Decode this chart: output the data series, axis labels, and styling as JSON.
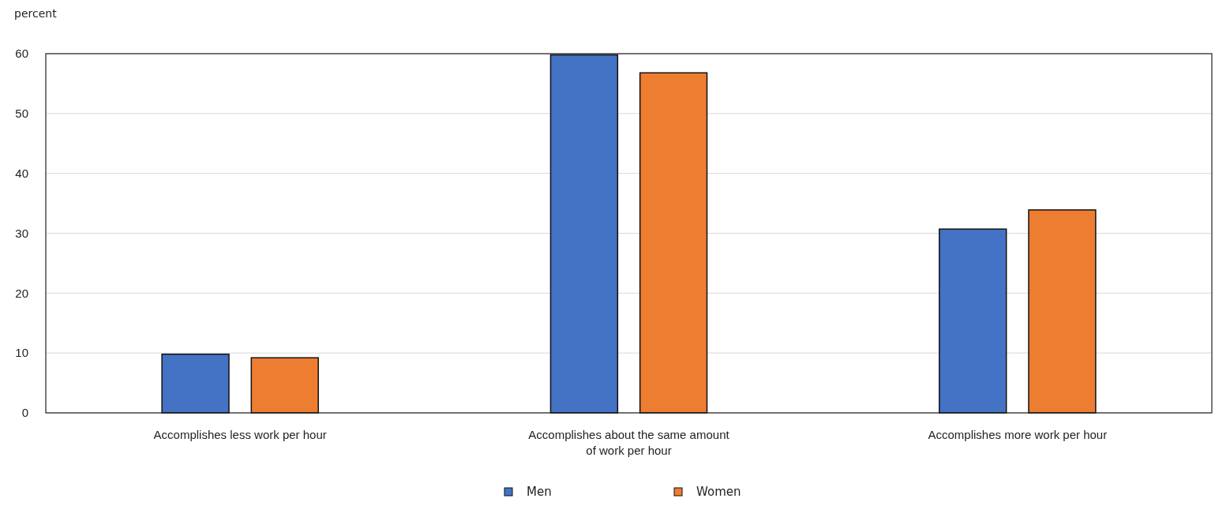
{
  "chart_data": {
    "type": "bar",
    "ylabel": "percent",
    "categories": [
      "Accomplishes less work per hour",
      "Accomplishes about the same amount of work per hour",
      "Accomplishes more work per hour"
    ],
    "series": [
      {
        "name": "Men",
        "color": "#4472c4",
        "values": [
          9.8,
          59.8,
          30.7
        ]
      },
      {
        "name": "Women",
        "color": "#ed7d31",
        "values": [
          9.2,
          56.8,
          33.9
        ]
      }
    ],
    "ylim": [
      0,
      60
    ],
    "yticks": [
      0,
      10,
      20,
      30,
      40,
      50,
      60
    ],
    "grid": "y",
    "legend": "bottom"
  }
}
